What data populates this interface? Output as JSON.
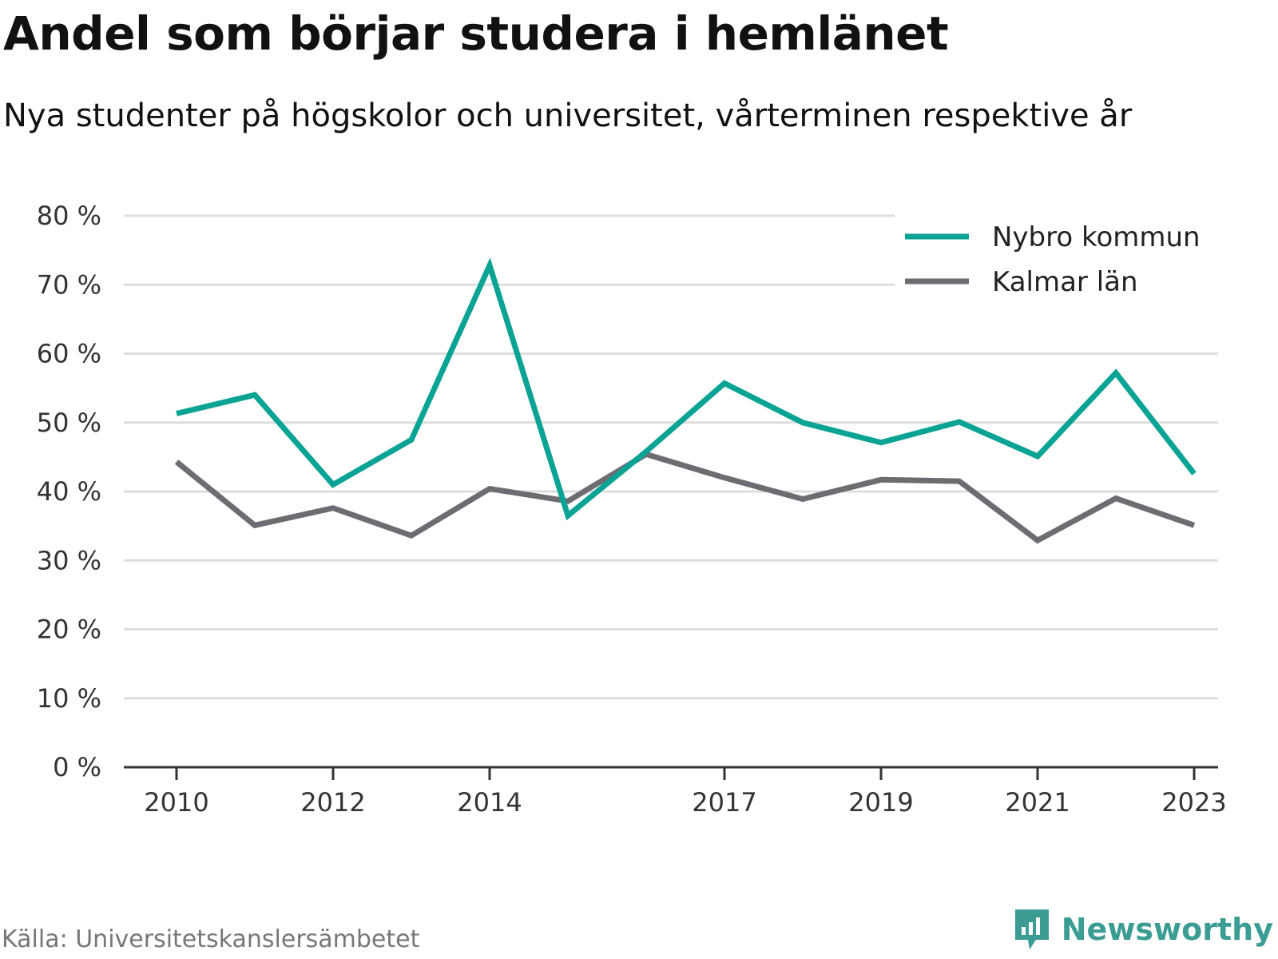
{
  "title": "Andel som börjar studera i hemlänet",
  "subtitle": "Nya studenter på högskolor och universitet, vårterminen respektive år",
  "source": "Källa: Universitetskanslersämbetet",
  "brand": {
    "name": "Newsworthy",
    "icon": "newsworthy-logo-icon",
    "color": "#3a9c92"
  },
  "chart_data": {
    "type": "line",
    "x": [
      2010,
      2011,
      2012,
      2013,
      2014,
      2015,
      2016,
      2017,
      2018,
      2019,
      2020,
      2021,
      2022,
      2023
    ],
    "x_tick_labels": [
      "2010",
      "2012",
      "2014",
      "2017",
      "2019",
      "2021",
      "2023"
    ],
    "y_tick_labels": [
      "0 %",
      "10 %",
      "20 %",
      "30 %",
      "40 %",
      "50 %",
      "60 %",
      "70 %",
      "80 %"
    ],
    "ylim": [
      0,
      80
    ],
    "grid": true,
    "legend_position": "top-right",
    "series": [
      {
        "name": "Nybro kommun",
        "color": "#0aa394",
        "values": [
          51.3,
          54.0,
          41.0,
          47.5,
          72.8,
          36.5,
          45.8,
          55.7,
          50.0,
          47.1,
          50.1,
          45.1,
          57.2,
          42.6
        ]
      },
      {
        "name": "Kalmar län",
        "color": "#6c6c72",
        "values": [
          44.3,
          35.1,
          37.6,
          33.6,
          40.4,
          38.6,
          45.4,
          42.0,
          38.9,
          41.7,
          41.5,
          32.9,
          39.0,
          35.1
        ]
      }
    ]
  }
}
